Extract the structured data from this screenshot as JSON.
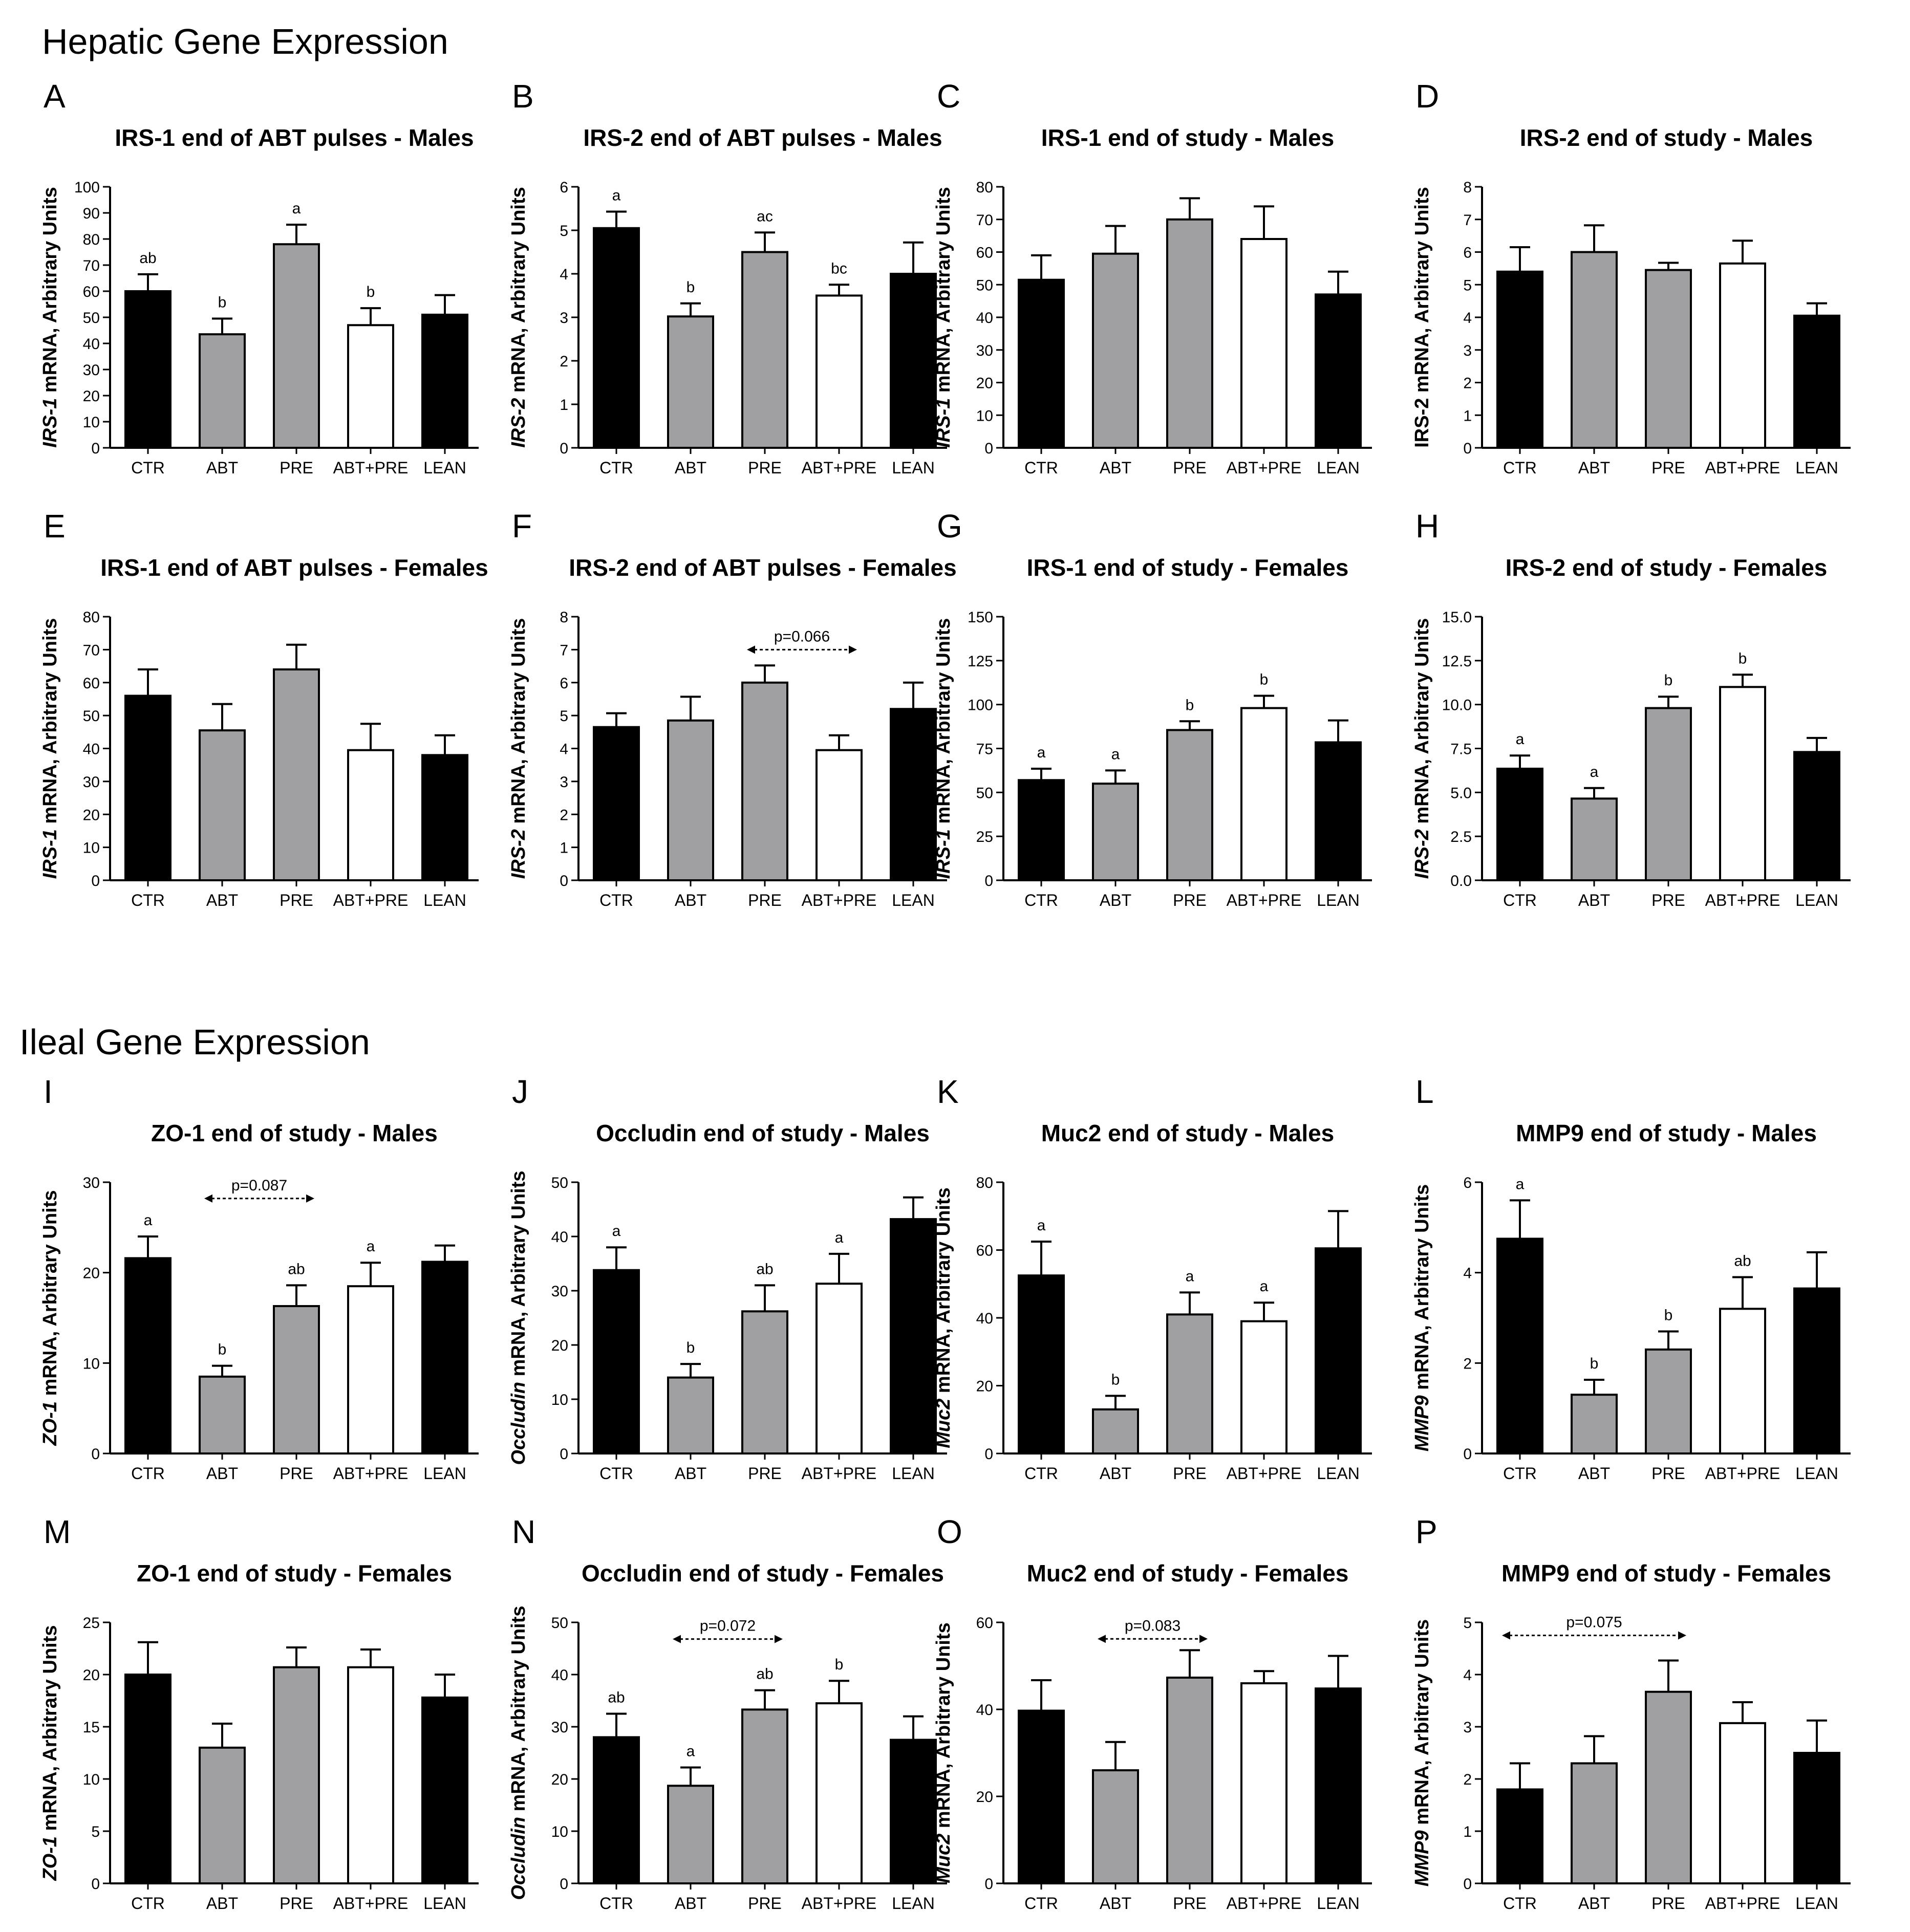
{
  "sections": [
    {
      "title": "Hepatic Gene Expression"
    },
    {
      "title": "Ileal Gene Expression"
    }
  ],
  "colors": {
    "CTR": "#000000",
    "ABT": "#a0a0a2",
    "PRE": "#a0a0a2",
    "ABT+PRE": "#ffffff",
    "LEAN": "#000000",
    "stroke": "#000000"
  },
  "chart_data": [
    {
      "id": "A",
      "type": "bar",
      "title": "IRS-1 end of ABT pulses - Males",
      "ylabel_gene": "IRS-1",
      "ylabel_rest": " mRNA, Arbitrary Units",
      "ylabel_gene_italic": true,
      "categories": [
        "CTR",
        "ABT",
        "PRE",
        "ABT+PRE",
        "LEAN"
      ],
      "values": [
        60,
        43.5,
        78,
        47,
        51
      ],
      "errors": [
        6.5,
        6,
        7.5,
        6.5,
        7.5
      ],
      "letters": [
        "ab",
        "b",
        "a",
        "b",
        ""
      ],
      "ylim": [
        0,
        100
      ],
      "yticks": [
        "0",
        "10",
        "20",
        "30",
        "40",
        "50",
        "60",
        "70",
        "80",
        "90",
        "100"
      ]
    },
    {
      "id": "B",
      "type": "bar",
      "title": "IRS-2 end of ABT pulses - Males",
      "ylabel_gene": "IRS-2",
      "ylabel_rest": " mRNA, Arbitrary Units",
      "ylabel_gene_italic": true,
      "categories": [
        "CTR",
        "ABT",
        "PRE",
        "ABT+PRE",
        "LEAN"
      ],
      "values": [
        5.05,
        3.02,
        4.5,
        3.5,
        4.0
      ],
      "errors": [
        0.38,
        0.3,
        0.45,
        0.25,
        0.72
      ],
      "letters": [
        "a",
        "b",
        "ac",
        "bc",
        ""
      ],
      "ylim": [
        0,
        6
      ],
      "yticks": [
        "0",
        "1",
        "2",
        "3",
        "4",
        "5",
        "6"
      ]
    },
    {
      "id": "C",
      "type": "bar",
      "title": "IRS-1 end of study - Males",
      "ylabel_gene": "IRS-1",
      "ylabel_rest": " mRNA, Arbitrary Units",
      "ylabel_gene_italic": true,
      "categories": [
        "CTR",
        "ABT",
        "PRE",
        "ABT+PRE",
        "LEAN"
      ],
      "values": [
        51.5,
        59.5,
        70,
        64,
        47
      ],
      "errors": [
        7.5,
        8.5,
        6.5,
        10,
        7
      ],
      "letters": [
        "",
        "",
        "",
        "",
        ""
      ],
      "ylim": [
        0,
        80
      ],
      "yticks": [
        "0",
        "10",
        "20",
        "30",
        "40",
        "50",
        "60",
        "70",
        "80"
      ]
    },
    {
      "id": "D",
      "type": "bar",
      "title": "IRS-2 end of study - Males",
      "ylabel_gene": "IRS-2",
      "ylabel_rest": " mRNA, Arbitrary Units",
      "ylabel_gene_italic": false,
      "categories": [
        "CTR",
        "ABT",
        "PRE",
        "ABT+PRE",
        "LEAN"
      ],
      "values": [
        5.4,
        6.0,
        5.45,
        5.65,
        4.05
      ],
      "errors": [
        0.75,
        0.82,
        0.22,
        0.7,
        0.38
      ],
      "letters": [
        "",
        "",
        "",
        "",
        ""
      ],
      "ylim": [
        0,
        8
      ],
      "yticks": [
        "0",
        "1",
        "2",
        "3",
        "4",
        "5",
        "6",
        "7",
        "8"
      ]
    },
    {
      "id": "E",
      "type": "bar",
      "title": "IRS-1 end of ABT pulses - Females",
      "ylabel_gene": "IRS-1",
      "ylabel_rest": " mRNA, Arbitrary Units",
      "ylabel_gene_italic": true,
      "categories": [
        "CTR",
        "ABT",
        "PRE",
        "ABT+PRE",
        "LEAN"
      ],
      "values": [
        56,
        45.5,
        64,
        39.5,
        38
      ],
      "errors": [
        8,
        8,
        7.5,
        8,
        6
      ],
      "letters": [
        "",
        "",
        "",
        "",
        ""
      ],
      "ylim": [
        0,
        80
      ],
      "yticks": [
        "0",
        "10",
        "20",
        "30",
        "40",
        "50",
        "60",
        "70",
        "80"
      ]
    },
    {
      "id": "F",
      "type": "bar",
      "title": "IRS-2 end of ABT pulses - Females",
      "ylabel_gene": "IRS-2",
      "ylabel_rest": " mRNA, Arbitrary Units",
      "ylabel_gene_italic": true,
      "categories": [
        "CTR",
        "ABT",
        "PRE",
        "ABT+PRE",
        "LEAN"
      ],
      "values": [
        4.65,
        4.85,
        6.0,
        3.95,
        5.2
      ],
      "errors": [
        0.42,
        0.72,
        0.52,
        0.45,
        0.8
      ],
      "letters": [
        "",
        "",
        "",
        "",
        ""
      ],
      "ylim": [
        0,
        8
      ],
      "yticks": [
        "0",
        "1",
        "2",
        "3",
        "4",
        "5",
        "6",
        "7",
        "8"
      ],
      "bracket": {
        "from": 2,
        "to": 3,
        "label": "p=0.066",
        "y": 7.0
      }
    },
    {
      "id": "G",
      "type": "bar",
      "title": "IRS-1 end of study - Females",
      "ylabel_gene": "IRS-1",
      "ylabel_rest": " mRNA, Arbitrary Units",
      "ylabel_gene_italic": true,
      "categories": [
        "CTR",
        "ABT",
        "PRE",
        "ABT+PRE",
        "LEAN"
      ],
      "values": [
        57,
        55,
        85.5,
        98,
        78.5
      ],
      "errors": [
        6.5,
        7.5,
        5,
        7,
        12.5
      ],
      "letters": [
        "a",
        "a",
        "b",
        "b",
        ""
      ],
      "ylim": [
        0,
        150
      ],
      "yticks": [
        "0",
        "25",
        "50",
        "75",
        "100",
        "125",
        "150"
      ]
    },
    {
      "id": "H",
      "type": "bar",
      "title": "IRS-2 end of study - Females",
      "ylabel_gene": "IRS-2",
      "ylabel_rest": " mRNA, Arbitrary Units",
      "ylabel_gene_italic": true,
      "categories": [
        "CTR",
        "ABT",
        "PRE",
        "ABT+PRE",
        "LEAN"
      ],
      "values": [
        6.35,
        4.65,
        9.8,
        11.0,
        7.3
      ],
      "errors": [
        0.75,
        0.6,
        0.65,
        0.7,
        0.8
      ],
      "letters": [
        "a",
        "a",
        "b",
        "b",
        ""
      ],
      "ylim": [
        0,
        15
      ],
      "yticks": [
        "0.0",
        "2.5",
        "5.0",
        "7.5",
        "10.0",
        "12.5",
        "15.0"
      ]
    },
    {
      "id": "I",
      "type": "bar",
      "title": "ZO-1 end of study - Males",
      "ylabel_gene": "ZO-1",
      "ylabel_rest": " mRNA, Arbitrary Units",
      "ylabel_gene_italic": true,
      "categories": [
        "CTR",
        "ABT",
        "PRE",
        "ABT+PRE",
        "LEAN"
      ],
      "values": [
        21.6,
        8.5,
        16.3,
        18.5,
        21.2
      ],
      "errors": [
        2.4,
        1.2,
        2.3,
        2.6,
        1.8
      ],
      "letters": [
        "a",
        "b",
        "ab",
        "a",
        ""
      ],
      "ylim": [
        0,
        30
      ],
      "yticks": [
        "0",
        "10",
        "20",
        "30"
      ],
      "bracket": {
        "from": 1,
        "to": 2,
        "label": "p=0.087",
        "y": 28.2
      }
    },
    {
      "id": "J",
      "type": "bar",
      "title": "Occludin end of study - Males",
      "ylabel_gene": "Occludin",
      "ylabel_rest": " mRNA, Arbitrary Units",
      "ylabel_gene_italic": true,
      "categories": [
        "CTR",
        "ABT",
        "PRE",
        "ABT+PRE",
        "LEAN"
      ],
      "values": [
        33.8,
        14,
        26.2,
        31.3,
        43.2
      ],
      "errors": [
        4.2,
        2.5,
        4.8,
        5.5,
        4
      ],
      "letters": [
        "a",
        "b",
        "ab",
        "a",
        ""
      ],
      "ylim": [
        0,
        50
      ],
      "yticks": [
        "0",
        "10",
        "20",
        "30",
        "40",
        "50"
      ]
    },
    {
      "id": "K",
      "type": "bar",
      "title": "Muc2 end of study - Males",
      "ylabel_gene": "Muc2",
      "ylabel_rest": " mRNA, Arbitrary Units",
      "ylabel_gene_italic": true,
      "categories": [
        "CTR",
        "ABT",
        "PRE",
        "ABT+PRE",
        "LEAN"
      ],
      "values": [
        52.5,
        13,
        41,
        39,
        60.5
      ],
      "errors": [
        10,
        4,
        6.5,
        5.5,
        11
      ],
      "letters": [
        "a",
        "b",
        "a",
        "a",
        ""
      ],
      "ylim": [
        0,
        80
      ],
      "yticks": [
        "0",
        "20",
        "40",
        "60",
        "80"
      ]
    },
    {
      "id": "L",
      "type": "bar",
      "title": "MMP9 end of study - Males",
      "ylabel_gene": "MMP9",
      "ylabel_rest": " mRNA, Arbitrary Units",
      "ylabel_gene_italic": true,
      "categories": [
        "CTR",
        "ABT",
        "PRE",
        "ABT+PRE",
        "LEAN"
      ],
      "values": [
        4.75,
        1.3,
        2.3,
        3.2,
        3.65
      ],
      "errors": [
        0.85,
        0.33,
        0.4,
        0.7,
        0.8
      ],
      "letters": [
        "a",
        "b",
        "b",
        "ab",
        ""
      ],
      "ylim": [
        0,
        6
      ],
      "yticks": [
        "0",
        "2",
        "4",
        "6"
      ]
    },
    {
      "id": "M",
      "type": "bar",
      "title": "ZO-1 end of study - Females",
      "ylabel_gene": "ZO-1",
      "ylabel_rest": " mRNA, Arbitrary Units",
      "ylabel_gene_italic": true,
      "categories": [
        "CTR",
        "ABT",
        "PRE",
        "ABT+PRE",
        "LEAN"
      ],
      "values": [
        20,
        13,
        20.7,
        20.7,
        17.8
      ],
      "errors": [
        3.1,
        2.3,
        1.9,
        1.7,
        2.2
      ],
      "letters": [
        "",
        "",
        "",
        "",
        ""
      ],
      "ylim": [
        0,
        25
      ],
      "yticks": [
        "0",
        "5",
        "10",
        "15",
        "20",
        "25"
      ]
    },
    {
      "id": "N",
      "type": "bar",
      "title": "Occludin end of study - Females",
      "ylabel_gene": "Occludin",
      "ylabel_rest": " mRNA, Arbitrary Units",
      "ylabel_gene_italic": true,
      "categories": [
        "CTR",
        "ABT",
        "PRE",
        "ABT+PRE",
        "LEAN"
      ],
      "values": [
        28,
        18.7,
        33.3,
        34.5,
        27.5
      ],
      "errors": [
        4.5,
        3.5,
        3.7,
        4.3,
        4.5
      ],
      "letters": [
        "ab",
        "a",
        "ab",
        "b",
        ""
      ],
      "ylim": [
        0,
        50
      ],
      "yticks": [
        "0",
        "10",
        "20",
        "30",
        "40",
        "50"
      ],
      "bracket": {
        "from": 1,
        "to": 2,
        "label": "p=0.072",
        "y": 46.8
      }
    },
    {
      "id": "O",
      "type": "bar",
      "title": "Muc2 end of study - Females",
      "ylabel_gene": "Muc2",
      "ylabel_rest": " mRNA, Arbitrary Units",
      "ylabel_gene_italic": true,
      "categories": [
        "CTR",
        "ABT",
        "PRE",
        "ABT+PRE",
        "LEAN"
      ],
      "values": [
        39.7,
        26,
        47.3,
        46,
        44.8
      ],
      "errors": [
        7,
        6.5,
        6.3,
        2.8,
        7.5
      ],
      "letters": [
        "",
        "",
        "",
        "",
        ""
      ],
      "ylim": [
        0,
        60
      ],
      "yticks": [
        "0",
        "20",
        "40",
        "60"
      ],
      "bracket": {
        "from": 1,
        "to": 2,
        "label": "p=0.083",
        "y": 56.2
      }
    },
    {
      "id": "P",
      "type": "bar",
      "title": "MMP9 end of study - Females",
      "ylabel_gene": "MMP9",
      "ylabel_rest": " mRNA, Arbitrary Units",
      "ylabel_gene_italic": true,
      "categories": [
        "CTR",
        "ABT",
        "PRE",
        "ABT+PRE",
        "LEAN"
      ],
      "values": [
        1.8,
        2.3,
        3.67,
        3.07,
        2.5
      ],
      "errors": [
        0.5,
        0.52,
        0.6,
        0.4,
        0.62
      ],
      "letters": [
        "",
        "",
        "",
        "",
        ""
      ],
      "ylim": [
        0,
        5
      ],
      "yticks": [
        "0",
        "1",
        "2",
        "3",
        "4",
        "5"
      ],
      "bracket": {
        "from": 0,
        "to": 2,
        "label": "p=0.075",
        "y": 4.75
      }
    }
  ]
}
